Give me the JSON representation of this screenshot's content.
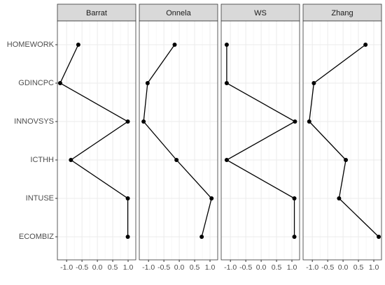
{
  "chart_data": {
    "type": "line",
    "categories": [
      "HOMEWORK",
      "GDINCPC",
      "INNOVSYS",
      "ICTHH",
      "INTUSE",
      "ECOMBIZ"
    ],
    "series": [
      {
        "name": "Barrat",
        "color": "#000000",
        "values": [
          -0.62,
          -1.21,
          0.99,
          -0.86,
          0.99,
          0.99
        ]
      },
      {
        "name": "Onnela",
        "color": "#000000",
        "values": [
          -0.15,
          -1.03,
          -1.16,
          -0.09,
          1.05,
          0.73
        ]
      },
      {
        "name": "WS",
        "color": "#000000",
        "values": [
          -1.12,
          -1.12,
          1.1,
          -1.12,
          1.08,
          1.08
        ]
      },
      {
        "name": "Zhang",
        "color": "#000000",
        "values": [
          0.73,
          -0.95,
          -1.1,
          0.09,
          -0.13,
          1.16
        ]
      }
    ],
    "xlim": [
      -1.3,
      1.25
    ],
    "xticks": [
      {
        "value": -1,
        "label": "-1.0"
      },
      {
        "value": -0.5,
        "label": "-0.5"
      },
      {
        "value": 0,
        "label": "0.0"
      },
      0.5,
      {
        "value": 1,
        "label": "1.0"
      }
    ],
    "grid": true,
    "facets": "columns"
  }
}
